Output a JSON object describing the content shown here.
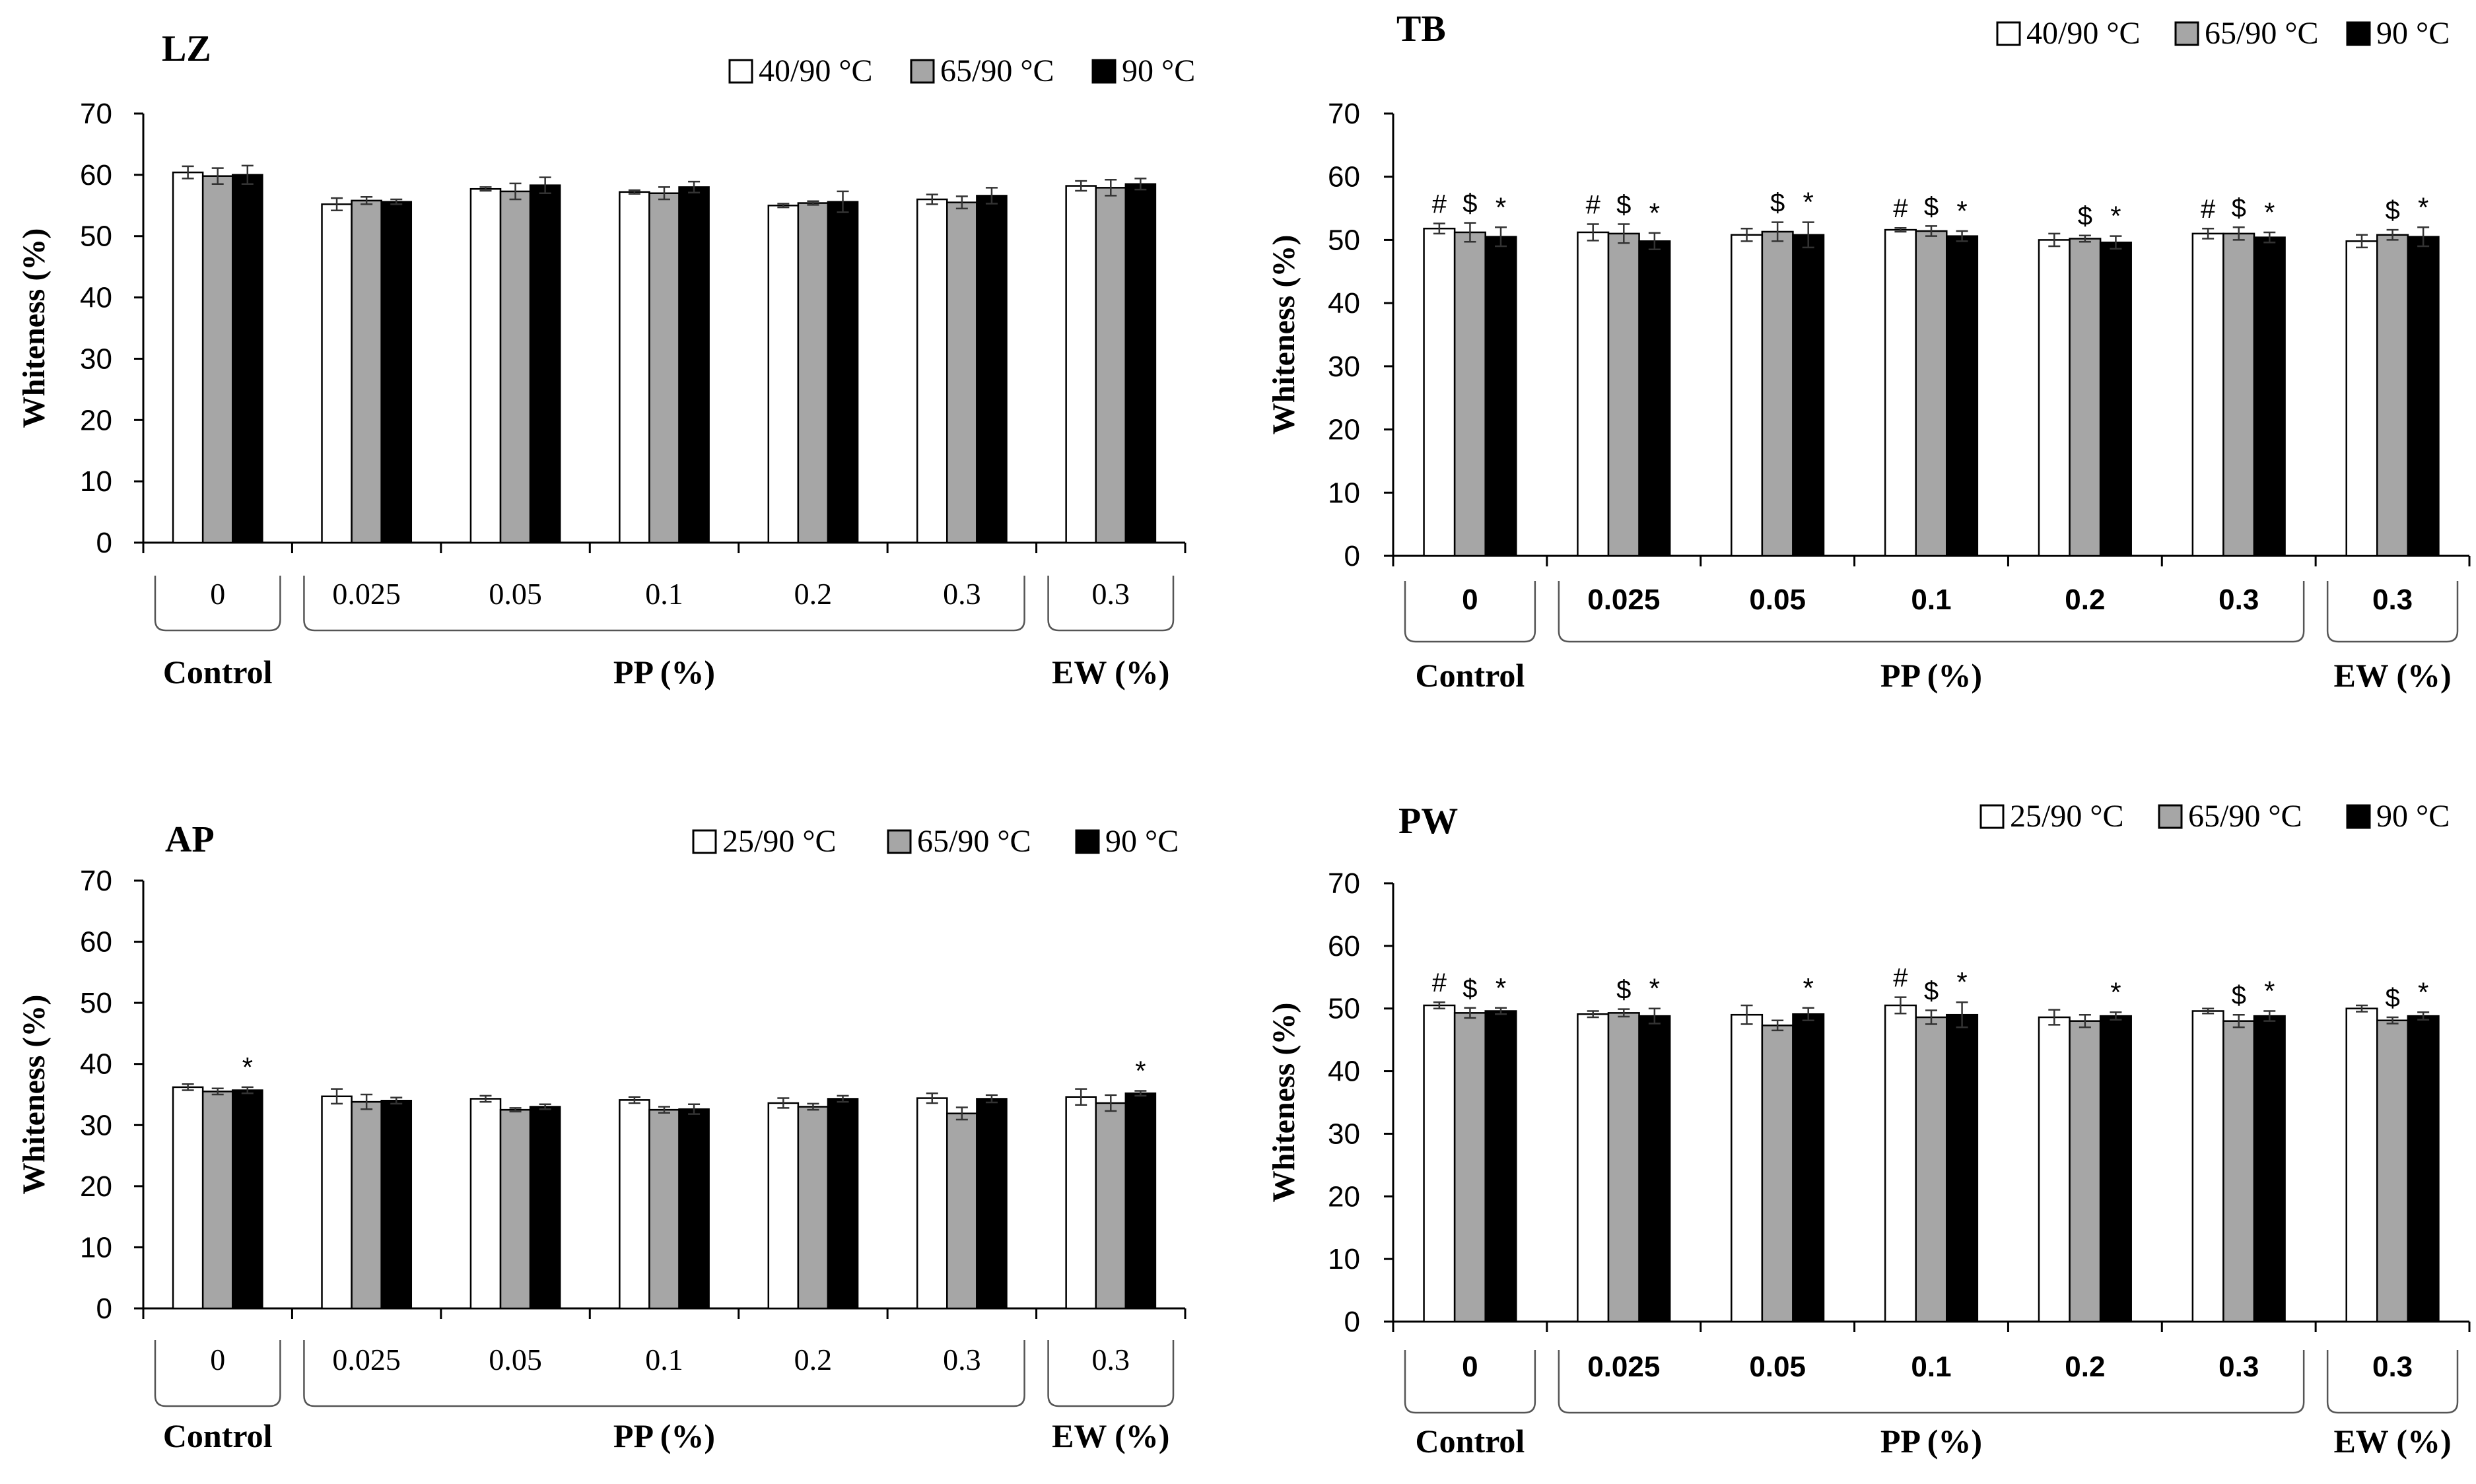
{
  "chart_data": [
    {
      "panel": "LZ",
      "type": "bar",
      "title": "LZ",
      "ylabel": "Whiteness (%)",
      "ylim": [
        0,
        70
      ],
      "yticks": [
        0,
        10,
        20,
        30,
        40,
        50,
        60,
        70
      ],
      "categories": [
        "0",
        "0.025",
        "0.05",
        "0.1",
        "0.2",
        "0.3",
        "0.3"
      ],
      "groups": [
        {
          "label": "Control",
          "start": 0,
          "end": 0
        },
        {
          "label": "PP (%)",
          "start": 1,
          "end": 5
        },
        {
          "label": "EW (%)",
          "start": 6,
          "end": 6
        }
      ],
      "series": [
        {
          "name": "40/90 °C",
          "fill": "#ffffff",
          "values": [
            60.4,
            55.2,
            57.7,
            57.2,
            55.0,
            56.0,
            58.2
          ],
          "errors": [
            1.0,
            1.0,
            0.3,
            0.3,
            0.3,
            0.8,
            0.8
          ],
          "marks": [
            "",
            "",
            "",
            "",
            "",
            "",
            ""
          ]
        },
        {
          "name": "65/90 °C",
          "fill": "#a6a6a6",
          "values": [
            59.8,
            55.8,
            57.3,
            57.0,
            55.4,
            55.5,
            57.9
          ],
          "errors": [
            1.3,
            0.6,
            1.3,
            1.0,
            0.3,
            1.0,
            1.3
          ],
          "marks": [
            "",
            "",
            "",
            "",
            "",
            "",
            ""
          ]
        },
        {
          "name": "90 °C",
          "fill": "#000000",
          "values": [
            60.0,
            55.6,
            58.3,
            58.0,
            55.6,
            56.6,
            58.5
          ],
          "errors": [
            1.5,
            0.4,
            1.3,
            0.9,
            1.7,
            1.3,
            0.9
          ],
          "marks": [
            "",
            "",
            "",
            "",
            "",
            "",
            ""
          ]
        }
      ]
    },
    {
      "panel": "TB",
      "type": "bar",
      "title": "TB",
      "ylabel": "Whiteness (%)",
      "ylim": [
        0,
        70
      ],
      "yticks": [
        0,
        10,
        20,
        30,
        40,
        50,
        60,
        70
      ],
      "categories": [
        "0",
        "0.025",
        "0.05",
        "0.1",
        "0.2",
        "0.3",
        "0.3"
      ],
      "groups": [
        {
          "label": "Control",
          "start": 0,
          "end": 0
        },
        {
          "label": "PP (%)",
          "start": 1,
          "end": 5
        },
        {
          "label": "EW (%)",
          "start": 6,
          "end": 6
        }
      ],
      "series": [
        {
          "name": "40/90 °C",
          "fill": "#ffffff",
          "values": [
            51.8,
            51.2,
            50.8,
            51.6,
            50.0,
            51.0,
            49.8
          ],
          "errors": [
            0.8,
            1.3,
            1.0,
            0.3,
            1.0,
            0.8,
            1.0
          ],
          "marks": [
            "#",
            "#",
            "",
            "#",
            "",
            "#",
            ""
          ]
        },
        {
          "name": "65/90 °C",
          "fill": "#a6a6a6",
          "values": [
            51.2,
            51.0,
            51.3,
            51.4,
            50.2,
            51.0,
            50.8
          ],
          "errors": [
            1.5,
            1.5,
            1.5,
            0.8,
            0.5,
            1.0,
            0.8
          ],
          "marks": [
            "$",
            "$",
            "$",
            "$",
            "$",
            "$",
            "$"
          ]
        },
        {
          "name": "90 °C",
          "fill": "#000000",
          "values": [
            50.5,
            49.8,
            50.8,
            50.6,
            49.6,
            50.4,
            50.5
          ],
          "errors": [
            1.5,
            1.3,
            2.0,
            0.8,
            1.0,
            0.8,
            1.5
          ],
          "marks": [
            "*",
            "*",
            "*",
            "*",
            "*",
            "*",
            "*"
          ]
        }
      ]
    },
    {
      "panel": "AP",
      "type": "bar",
      "title": "AP",
      "ylabel": "Whiteness (%)",
      "ylim": [
        0,
        70
      ],
      "yticks": [
        0,
        10,
        20,
        30,
        40,
        50,
        60,
        70
      ],
      "categories": [
        "0",
        "0.025",
        "0.05",
        "0.1",
        "0.2",
        "0.3",
        "0.3"
      ],
      "groups": [
        {
          "label": "Control",
          "start": 0,
          "end": 0
        },
        {
          "label": "PP (%)",
          "start": 1,
          "end": 5
        },
        {
          "label": "EW (%)",
          "start": 6,
          "end": 6
        }
      ],
      "series": [
        {
          "name": "25/90 °C",
          "fill": "#ffffff",
          "values": [
            36.2,
            34.7,
            34.3,
            34.1,
            33.6,
            34.4,
            34.6
          ],
          "errors": [
            0.5,
            1.2,
            0.5,
            0.5,
            0.8,
            0.8,
            1.3
          ],
          "marks": [
            "",
            "",
            "",
            "",
            "",
            "",
            ""
          ]
        },
        {
          "name": "65/90 °C",
          "fill": "#a6a6a6",
          "values": [
            35.5,
            33.8,
            32.5,
            32.5,
            33.0,
            31.9,
            33.6
          ],
          "errors": [
            0.5,
            1.2,
            0.3,
            0.5,
            0.5,
            1.0,
            1.3
          ],
          "marks": [
            "",
            "",
            "",
            "",
            "",
            "",
            ""
          ]
        },
        {
          "name": "90 °C",
          "fill": "#000000",
          "values": [
            35.7,
            34.0,
            33.0,
            32.6,
            34.3,
            34.3,
            35.2
          ],
          "errors": [
            0.5,
            0.5,
            0.4,
            0.8,
            0.5,
            0.6,
            0.4
          ],
          "marks": [
            "*",
            "",
            "",
            "",
            "",
            "",
            "*"
          ]
        }
      ]
    },
    {
      "panel": "PW",
      "type": "bar",
      "title": "PW",
      "ylabel": "Whiteness (%)",
      "ylim": [
        0,
        70
      ],
      "yticks": [
        0,
        10,
        20,
        30,
        40,
        50,
        60,
        70
      ],
      "categories": [
        "0",
        "0.025",
        "0.05",
        "0.1",
        "0.2",
        "0.3",
        "0.3"
      ],
      "groups": [
        {
          "label": "Control",
          "start": 0,
          "end": 0
        },
        {
          "label": "PP (%)",
          "start": 1,
          "end": 5
        },
        {
          "label": "EW (%)",
          "start": 6,
          "end": 6
        }
      ],
      "series": [
        {
          "name": "25/90 °C",
          "fill": "#ffffff",
          "values": [
            50.5,
            49.1,
            49.0,
            50.5,
            48.6,
            49.6,
            50.0
          ],
          "errors": [
            0.5,
            0.5,
            1.5,
            1.3,
            1.2,
            0.4,
            0.5
          ],
          "marks": [
            "#",
            "",
            "",
            "#",
            "",
            "",
            ""
          ]
        },
        {
          "name": "65/90 °C",
          "fill": "#a6a6a6",
          "values": [
            49.3,
            49.3,
            47.3,
            48.6,
            48.0,
            48.0,
            48.1
          ],
          "errors": [
            0.8,
            0.6,
            0.8,
            1.1,
            1.0,
            1.0,
            0.5
          ],
          "marks": [
            "$",
            "$",
            "",
            "$",
            "",
            "$",
            "$"
          ]
        },
        {
          "name": "90 °C",
          "fill": "#000000",
          "values": [
            49.6,
            48.8,
            49.1,
            49.0,
            48.8,
            48.8,
            48.8
          ],
          "errors": [
            0.5,
            1.2,
            1.0,
            2.0,
            0.6,
            0.8,
            0.6
          ],
          "marks": [
            "*",
            "*",
            "*",
            "*",
            "*",
            "*",
            "*"
          ]
        }
      ]
    }
  ]
}
